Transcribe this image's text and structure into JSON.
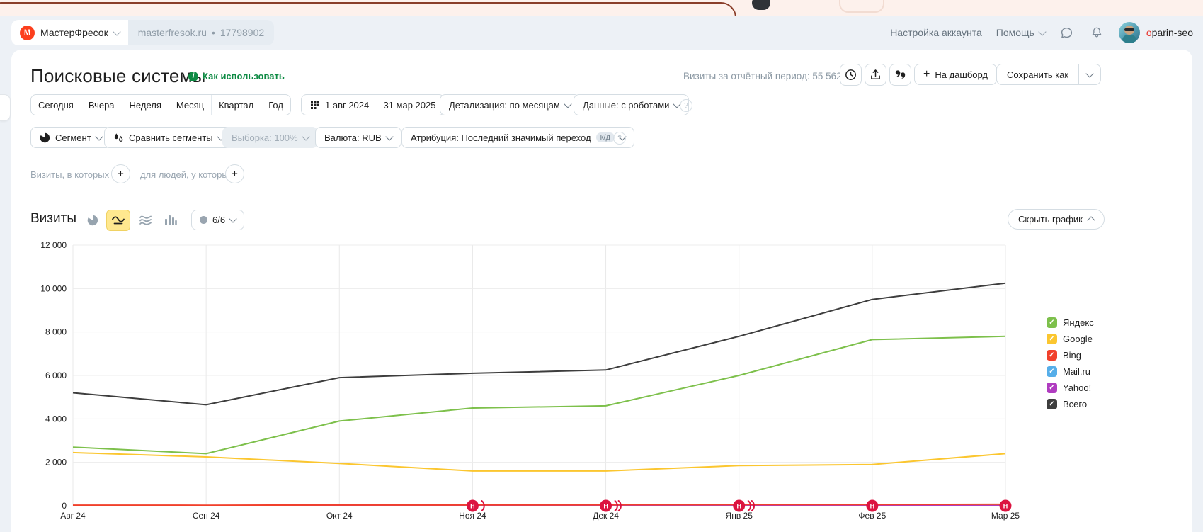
{
  "icons": {
    "plus": "+",
    "question": "?",
    "info": "i",
    "check": "✓",
    "dot": "•",
    "logo_letter": "М"
  },
  "theme": {
    "page_bg": "#edf1f6",
    "card_bg": "#ffffff",
    "accent_green": "#0d8a43",
    "brand_red": "#fc3f1d",
    "marker_red": "#dc1440",
    "selected_yellow": "#ffe88f",
    "grid_line": "#ececec",
    "axis_line": "#d4d4d4"
  },
  "header": {
    "counter_name": "МастерФресок",
    "domain": "masterfresok.ru",
    "counter_id": "17798902",
    "account_settings": "Настройка аккаунта",
    "help": "Помощь",
    "username_first": "o",
    "username_rest": "parin-seo"
  },
  "title_bar": {
    "title": "Поисковые системы",
    "how_to_use": "Как использовать",
    "visits_summary": "Визиты за отчётный период: 55 562",
    "to_dashboard": "На дашборд",
    "save_as": "Сохранить как"
  },
  "period_bar": {
    "tabs": [
      "Сегодня",
      "Вчера",
      "Неделя",
      "Месяц",
      "Квартал",
      "Год"
    ],
    "date_range": "1 авг 2024 — 31 мар 2025",
    "detalization": "Детализация: по месяцам",
    "data_mode": "Данные: с роботами"
  },
  "segment_bar": {
    "segment": "Сегмент",
    "compare": "Сравнить сегменты",
    "sampling": "Выборка: 100%",
    "currency": "Валюта: RUB",
    "attribution": "Атрибуция: Последний значимый переход",
    "attribution_badge": "к/д"
  },
  "filter_bar": {
    "visits_label": "Визиты, в которых",
    "people_label": "для людей, у которых"
  },
  "chart_header": {
    "metric": "Визиты",
    "series_count": "6/6",
    "hide_chart": "Скрыть график"
  },
  "chart_data": {
    "type": "line",
    "title": "Визиты",
    "categories": [
      "Авг 24",
      "Сен 24",
      "Окт 24",
      "Ноя 24",
      "Дек 24",
      "Янв 25",
      "Фев 25",
      "Мар 25"
    ],
    "series": [
      {
        "name": "Яндекс",
        "color": "#7dc04b",
        "values": [
          2700,
          2400,
          3900,
          4500,
          4600,
          6000,
          7650,
          7800
        ]
      },
      {
        "name": "Google",
        "color": "#fbc62f",
        "values": [
          2450,
          2250,
          1950,
          1600,
          1600,
          1850,
          1900,
          2400
        ]
      },
      {
        "name": "Bing",
        "color": "#f1402b",
        "values": [
          30,
          25,
          35,
          40,
          45,
          55,
          60,
          70
        ]
      },
      {
        "name": "Mail.ru",
        "color": "#56aee9",
        "values": [
          10,
          8,
          10,
          12,
          12,
          15,
          18,
          20
        ]
      },
      {
        "name": "Yahoo!",
        "color": "#b03cc0",
        "values": [
          3,
          3,
          3,
          4,
          4,
          5,
          5,
          6
        ]
      },
      {
        "name": "Всего",
        "color": "#3d3d3d",
        "values": [
          5200,
          4650,
          5900,
          6100,
          6250,
          7800,
          9500,
          10250
        ]
      }
    ],
    "ylim": [
      0,
      12000
    ],
    "ytick_step": 2000,
    "grid": true,
    "legend_position": "right",
    "annotations": {
      "letter": "Н",
      "markers": [
        {
          "category": "Ноя 24",
          "arcs": 1
        },
        {
          "category": "Дек 24",
          "arcs": 2
        },
        {
          "category": "Янв 25",
          "arcs": 2
        },
        {
          "category": "Фев 25",
          "arcs": 0
        },
        {
          "category": "Мар 25",
          "arcs": 0
        }
      ]
    }
  }
}
